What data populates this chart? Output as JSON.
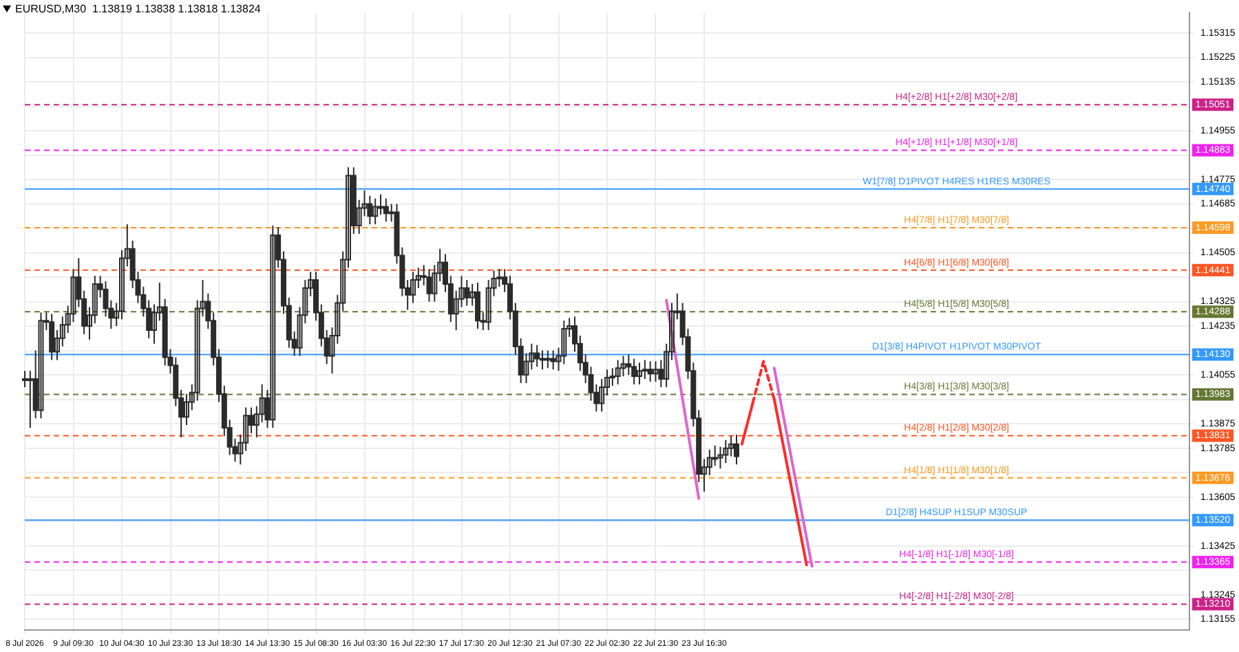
{
  "chart_data": {
    "type": "candlestick",
    "title": "EURUSD,M30  1.13819 1.13838 1.13818 1.13824",
    "color": "#2b2b2b",
    "categories": [
      "8 Jul 2026",
      null,
      null,
      null,
      null,
      null,
      null,
      null,
      null,
      "9 Jul 09:30",
      null,
      null,
      null,
      null,
      null,
      null,
      null,
      null,
      "10 Jul 04:30",
      null,
      null,
      null,
      null,
      null,
      null,
      null,
      null,
      "10 Jul 23:30",
      null,
      null,
      null,
      null,
      null,
      null,
      null,
      null,
      "13 Jul 18:30",
      null,
      null,
      null,
      null,
      null,
      null,
      null,
      null,
      "14 Jul 13:30",
      null,
      null,
      null,
      null,
      null,
      null,
      null,
      null,
      "15 Jul 08:30",
      null,
      null,
      null,
      null,
      null,
      null,
      null,
      null,
      "16 Jul 03:30",
      null,
      null,
      null,
      null,
      null,
      null,
      null,
      null,
      "16 Jul 22:30",
      null,
      null,
      null,
      null,
      null,
      null,
      null,
      null,
      "17 Jul 17:30",
      null,
      null,
      null,
      null,
      null,
      null,
      null,
      null,
      "20 Jul 12:30",
      null,
      null,
      null,
      null,
      null,
      null,
      null,
      null,
      "21 Jul 07:30",
      null,
      null,
      null,
      null,
      null,
      null,
      null,
      null,
      "22 Jul 02:30",
      null,
      null,
      null,
      null,
      null,
      null,
      null,
      null,
      "22 Jul 21:30",
      null,
      null,
      null,
      null,
      null,
      null,
      null,
      null,
      "23 Jul 16:30",
      null,
      null,
      null,
      null,
      null,
      null,
      null,
      null,
      null,
      null,
      null,
      null,
      null,
      null,
      null,
      null,
      null,
      null,
      null,
      null,
      null,
      null,
      null,
      null,
      null,
      null,
      null,
      null,
      null,
      null,
      null,
      null,
      null,
      null,
      null,
      null,
      null,
      null,
      null,
      null,
      null,
      null,
      null,
      null,
      null,
      null,
      null,
      null,
      null,
      null,
      null,
      null,
      null,
      null,
      null,
      null,
      null,
      null,
      null,
      null,
      null,
      null,
      null,
      null,
      null,
      null,
      null,
      null,
      null,
      null,
      null,
      null,
      null,
      null,
      null,
      null,
      null,
      null,
      null,
      null,
      null,
      null,
      null,
      null,
      null,
      null,
      null,
      null,
      null,
      null
    ],
    "ohlc": [
      [
        1.1404,
        1.1407,
        1.1401,
        1.1404
      ],
      [
        1.1404,
        1.1407,
        1.1386,
        1.1404
      ],
      [
        1.1404,
        1.14145,
        1.13895,
        1.13925
      ],
      [
        1.13925,
        1.14285,
        1.13895,
        1.14255
      ],
      [
        1.14255,
        1.14285,
        1.1422,
        1.1425
      ],
      [
        1.1425,
        1.1428,
        1.1411,
        1.1414
      ],
      [
        1.1414,
        1.1422,
        1.1411,
        1.1419
      ],
      [
        1.1419,
        1.1427,
        1.1416,
        1.1424
      ],
      [
        1.1424,
        1.1431,
        1.1421,
        1.1428
      ],
      [
        1.1428,
        1.14445,
        1.1425,
        1.14415
      ],
      [
        1.14415,
        1.14485,
        1.14305,
        1.14335
      ],
      [
        1.14335,
        1.14365,
        1.14205,
        1.14235
      ],
      [
        1.14235,
        1.14305,
        1.14185,
        1.14275
      ],
      [
        1.14275,
        1.1442,
        1.14245,
        1.1439
      ],
      [
        1.1439,
        1.1442,
        1.1434,
        1.1437
      ],
      [
        1.1437,
        1.144,
        1.1427,
        1.143
      ],
      [
        1.143,
        1.1433,
        1.14225,
        1.14265
      ],
      [
        1.14265,
        1.1432,
        1.14235,
        1.1429
      ],
      [
        1.1429,
        1.14515,
        1.1426,
        1.14485
      ],
      [
        1.14485,
        1.1461,
        1.14455,
        1.1452
      ],
      [
        1.1452,
        1.1455,
        1.14375,
        1.14405
      ],
      [
        1.14405,
        1.14435,
        1.1432,
        1.1435
      ],
      [
        1.1435,
        1.1438,
        1.1427,
        1.143
      ],
      [
        1.143,
        1.1433,
        1.1419,
        1.1422
      ],
      [
        1.1422,
        1.14315,
        1.1417,
        1.14285
      ],
      [
        1.14285,
        1.14395,
        1.14255,
        1.14305
      ],
      [
        1.14305,
        1.14335,
        1.1409,
        1.1412
      ],
      [
        1.1412,
        1.1415,
        1.1406,
        1.1409
      ],
      [
        1.1409,
        1.1412,
        1.1394,
        1.1397
      ],
      [
        1.1397,
        1.14,
        1.13825,
        1.139
      ],
      [
        1.139,
        1.13985,
        1.1387,
        1.13955
      ],
      [
        1.13955,
        1.1402,
        1.13925,
        1.1399
      ],
      [
        1.1399,
        1.1433,
        1.1396,
        1.143
      ],
      [
        1.143,
        1.14405,
        1.1427,
        1.14325
      ],
      [
        1.14325,
        1.14355,
        1.14225,
        1.14255
      ],
      [
        1.14255,
        1.14285,
        1.1409,
        1.1412
      ],
      [
        1.1412,
        1.1415,
        1.13955,
        1.13985
      ],
      [
        1.13985,
        1.14015,
        1.1383,
        1.1386
      ],
      [
        1.1386,
        1.1389,
        1.1376,
        1.1379
      ],
      [
        1.1379,
        1.1382,
        1.13735,
        1.13765
      ],
      [
        1.13765,
        1.13835,
        1.13725,
        1.13805
      ],
      [
        1.13805,
        1.13935,
        1.13775,
        1.13905
      ],
      [
        1.13905,
        1.13935,
        1.1384,
        1.1387
      ],
      [
        1.1387,
        1.1394,
        1.13825,
        1.1391
      ],
      [
        1.1391,
        1.1402,
        1.1388,
        1.1397
      ],
      [
        1.1397,
        1.14,
        1.1386,
        1.1389
      ],
      [
        1.1389,
        1.14605,
        1.1386,
        1.1457
      ],
      [
        1.1457,
        1.146,
        1.1445,
        1.1448
      ],
      [
        1.1448,
        1.1451,
        1.1428,
        1.1431
      ],
      [
        1.1431,
        1.1434,
        1.14155,
        1.14185
      ],
      [
        1.14185,
        1.14215,
        1.14125,
        1.14155
      ],
      [
        1.14155,
        1.14305,
        1.14125,
        1.14275
      ],
      [
        1.14275,
        1.14405,
        1.14245,
        1.14375
      ],
      [
        1.14375,
        1.14435,
        1.14345,
        1.14405
      ],
      [
        1.14405,
        1.14435,
        1.14255,
        1.14285
      ],
      [
        1.14285,
        1.14315,
        1.1416,
        1.1419
      ],
      [
        1.1419,
        1.1422,
        1.14095,
        1.14125
      ],
      [
        1.14125,
        1.1423,
        1.1406,
        1.142
      ],
      [
        1.142,
        1.1435,
        1.1417,
        1.1432
      ],
      [
        1.1432,
        1.1451,
        1.1429,
        1.1448
      ],
      [
        1.1448,
        1.1482,
        1.1445,
        1.1479
      ],
      [
        1.1479,
        1.1482,
        1.14575,
        1.14605
      ],
      [
        1.14605,
        1.147,
        1.14575,
        1.1467
      ],
      [
        1.1467,
        1.14735,
        1.1464,
        1.14685
      ],
      [
        1.14685,
        1.14715,
        1.1461,
        1.1464
      ],
      [
        1.1464,
        1.14705,
        1.1461,
        1.14675
      ],
      [
        1.14675,
        1.1472,
        1.14645,
        1.14675
      ],
      [
        1.14675,
        1.14705,
        1.1462,
        1.1465
      ],
      [
        1.1465,
        1.14685,
        1.1462,
        1.14655
      ],
      [
        1.14655,
        1.14685,
        1.14465,
        1.14495
      ],
      [
        1.14495,
        1.14525,
        1.14345,
        1.14375
      ],
      [
        1.14375,
        1.14405,
        1.14295,
        1.1435
      ],
      [
        1.1435,
        1.14435,
        1.1432,
        1.14405
      ],
      [
        1.14405,
        1.1445,
        1.14375,
        1.1442
      ],
      [
        1.1442,
        1.1446,
        1.14385,
        1.14415
      ],
      [
        1.14415,
        1.14445,
        1.14325,
        1.14355
      ],
      [
        1.14355,
        1.1446,
        1.14325,
        1.1443
      ],
      [
        1.1443,
        1.1452,
        1.144,
        1.1447
      ],
      [
        1.1447,
        1.145,
        1.1436,
        1.1439
      ],
      [
        1.1439,
        1.1442,
        1.1425,
        1.1428
      ],
      [
        1.1428,
        1.14365,
        1.1422,
        1.14335
      ],
      [
        1.14335,
        1.1442,
        1.14305,
        1.14375
      ],
      [
        1.14375,
        1.14405,
        1.1431,
        1.1434
      ],
      [
        1.1434,
        1.1439,
        1.1431,
        1.1436
      ],
      [
        1.1436,
        1.14395,
        1.14225,
        1.14255
      ],
      [
        1.14255,
        1.14285,
        1.1422,
        1.1425
      ],
      [
        1.1425,
        1.14405,
        1.1422,
        1.14375
      ],
      [
        1.14375,
        1.1444,
        1.14345,
        1.1441
      ],
      [
        1.1441,
        1.14445,
        1.1438,
        1.14415
      ],
      [
        1.14415,
        1.14445,
        1.1436,
        1.1439
      ],
      [
        1.1439,
        1.1442,
        1.1426,
        1.1429
      ],
      [
        1.1429,
        1.1432,
        1.1413,
        1.1416
      ],
      [
        1.1416,
        1.1419,
        1.14025,
        1.14055
      ],
      [
        1.14055,
        1.14135,
        1.14025,
        1.14105
      ],
      [
        1.14105,
        1.1417,
        1.14075,
        1.14135
      ],
      [
        1.14135,
        1.14165,
        1.14085,
        1.14115
      ],
      [
        1.14115,
        1.14145,
        1.14075,
        1.1411
      ],
      [
        1.1411,
        1.14145,
        1.1408,
        1.14115
      ],
      [
        1.14115,
        1.14145,
        1.14075,
        1.14105
      ],
      [
        1.14105,
        1.14155,
        1.1407,
        1.14125
      ],
      [
        1.14125,
        1.14255,
        1.14095,
        1.14225
      ],
      [
        1.14225,
        1.14265,
        1.14195,
        1.14235
      ],
      [
        1.14235,
        1.1427,
        1.1414,
        1.1417
      ],
      [
        1.1417,
        1.142,
        1.1407,
        1.141
      ],
      [
        1.141,
        1.1413,
        1.14025,
        1.14055
      ],
      [
        1.14055,
        1.14085,
        1.1396,
        1.1399
      ],
      [
        1.1399,
        1.1402,
        1.1392,
        1.1395
      ],
      [
        1.1395,
        1.1404,
        1.1392,
        1.1401
      ],
      [
        1.1401,
        1.14075,
        1.1398,
        1.14045
      ],
      [
        1.14045,
        1.1408,
        1.14015,
        1.1405
      ],
      [
        1.1405,
        1.1411,
        1.1402,
        1.1408
      ],
      [
        1.1408,
        1.14125,
        1.1405,
        1.14095
      ],
      [
        1.14095,
        1.1413,
        1.14055,
        1.14085
      ],
      [
        1.14085,
        1.14115,
        1.1402,
        1.1405
      ],
      [
        1.1405,
        1.141,
        1.1402,
        1.1407
      ],
      [
        1.1407,
        1.1411,
        1.1404,
        1.14075
      ],
      [
        1.14075,
        1.14105,
        1.1403,
        1.1406
      ],
      [
        1.1406,
        1.14105,
        1.1403,
        1.14075
      ],
      [
        1.14075,
        1.1411,
        1.1401,
        1.1404
      ],
      [
        1.1404,
        1.1417,
        1.1401,
        1.1414
      ],
      [
        1.1414,
        1.1432,
        1.1411,
        1.1429
      ],
      [
        1.1429,
        1.14355,
        1.1426,
        1.1429
      ],
      [
        1.1429,
        1.1432,
        1.14165,
        1.14195
      ],
      [
        1.14195,
        1.14225,
        1.1404,
        1.1407
      ],
      [
        1.1407,
        1.141,
        1.13865,
        1.13895
      ],
      [
        1.13895,
        1.13925,
        1.1366,
        1.1369
      ],
      [
        1.1369,
        1.13745,
        1.13625,
        1.13715
      ],
      [
        1.13715,
        1.1378,
        1.13685,
        1.1375
      ],
      [
        1.1375,
        1.13795,
        1.1372,
        1.1375
      ],
      [
        1.1375,
        1.1379,
        1.1371,
        1.1376
      ],
      [
        1.1376,
        1.13815,
        1.1373,
        1.13785
      ],
      [
        1.13785,
        1.1383,
        1.13755,
        1.138
      ],
      [
        1.138,
        1.13835,
        1.13725,
        1.13755
      ],
      null,
      null,
      null,
      null,
      null,
      null,
      null,
      null,
      null,
      null,
      null,
      null,
      null,
      null,
      null,
      null,
      null,
      null,
      null,
      null,
      null,
      null,
      null,
      null,
      null,
      null,
      null,
      null,
      null,
      null,
      null,
      null,
      null,
      null,
      null,
      null,
      null,
      null,
      null,
      null,
      null,
      null,
      null,
      null,
      null,
      null,
      null,
      null,
      null,
      null,
      null,
      null,
      null,
      null,
      null,
      null,
      null,
      null,
      null,
      null,
      null,
      null,
      null,
      null,
      null,
      null,
      null,
      null,
      null,
      null,
      null,
      null,
      null,
      null,
      null,
      null,
      null,
      null,
      null,
      null,
      null,
      null,
      null,
      null
    ],
    "series": [
      {
        "type": "line",
        "color": "#dd66cc",
        "line_style": "solid",
        "values": [
          null,
          null,
          null,
          null,
          null,
          null,
          null,
          null,
          null,
          null,
          null,
          null,
          null,
          null,
          null,
          null,
          null,
          null,
          null,
          null,
          null,
          null,
          null,
          null,
          null,
          null,
          null,
          null,
          null,
          null,
          null,
          null,
          null,
          null,
          null,
          null,
          null,
          null,
          null,
          null,
          null,
          null,
          null,
          null,
          null,
          null,
          null,
          null,
          null,
          null,
          null,
          null,
          null,
          null,
          null,
          null,
          null,
          null,
          null,
          null,
          null,
          null,
          null,
          null,
          null,
          null,
          null,
          null,
          null,
          null,
          null,
          null,
          null,
          null,
          null,
          null,
          null,
          null,
          null,
          null,
          null,
          null,
          null,
          null,
          null,
          null,
          null,
          null,
          null,
          null,
          null,
          null,
          null,
          null,
          null,
          null,
          null,
          null,
          null,
          null,
          null,
          null,
          null,
          null,
          null,
          null,
          null,
          null,
          null,
          null,
          null,
          null,
          null,
          null,
          null,
          null,
          null,
          null,
          null,
          1.1433,
          null,
          null,
          null,
          null,
          null,
          1.136,
          null,
          null,
          null,
          null,
          null,
          null,
          null,
          null,
          null,
          null,
          null,
          null,
          null,
          null,
          null,
          null,
          null,
          null,
          null,
          null,
          null,
          null,
          null,
          null,
          null,
          null,
          null,
          null,
          null,
          null,
          null,
          null,
          null,
          null,
          null,
          null,
          null,
          null,
          null,
          null,
          null,
          null,
          null,
          null,
          null,
          null,
          null,
          null,
          null,
          null,
          null,
          null,
          null,
          null,
          null,
          null,
          null,
          null,
          null,
          null,
          null,
          null,
          null,
          null,
          null,
          null,
          null,
          null,
          null,
          null,
          null,
          null,
          null,
          null,
          null,
          null,
          null,
          null,
          null,
          null,
          null,
          null,
          null,
          null,
          null,
          null,
          null,
          null,
          null,
          null,
          null
        ]
      },
      {
        "type": "line",
        "color": "#dd66cc",
        "line_style": "solid",
        "values": [
          null,
          null,
          null,
          null,
          null,
          null,
          null,
          null,
          null,
          null,
          null,
          null,
          null,
          null,
          null,
          null,
          null,
          null,
          null,
          null,
          null,
          null,
          null,
          null,
          null,
          null,
          null,
          null,
          null,
          null,
          null,
          null,
          null,
          null,
          null,
          null,
          null,
          null,
          null,
          null,
          null,
          null,
          null,
          null,
          null,
          null,
          null,
          null,
          null,
          null,
          null,
          null,
          null,
          null,
          null,
          null,
          null,
          null,
          null,
          null,
          null,
          null,
          null,
          null,
          null,
          null,
          null,
          null,
          null,
          null,
          null,
          null,
          null,
          null,
          null,
          null,
          null,
          null,
          null,
          null,
          null,
          null,
          null,
          null,
          null,
          null,
          null,
          null,
          null,
          null,
          null,
          null,
          null,
          null,
          null,
          null,
          null,
          null,
          null,
          null,
          null,
          null,
          null,
          null,
          null,
          null,
          null,
          null,
          null,
          null,
          null,
          null,
          null,
          null,
          null,
          null,
          null,
          null,
          null,
          null,
          null,
          null,
          null,
          null,
          null,
          null,
          null,
          null,
          null,
          null,
          null,
          null,
          null,
          null,
          null,
          null,
          null,
          null,
          null,
          1.1408,
          null,
          null,
          null,
          null,
          null,
          null,
          1.1335,
          null,
          null,
          null,
          null,
          null,
          null,
          null,
          null,
          null,
          null,
          null,
          null,
          null,
          null,
          null,
          null,
          null,
          null,
          null,
          null,
          null,
          null,
          null,
          null,
          null,
          null,
          null,
          null,
          null,
          null,
          null,
          null,
          null,
          null,
          null,
          null,
          null,
          null,
          null,
          null,
          null,
          null,
          null,
          null,
          null,
          null,
          null,
          null,
          null,
          null,
          null,
          null,
          null,
          null,
          null,
          null,
          null,
          null,
          null,
          null,
          null,
          null,
          null,
          null,
          null,
          null,
          null,
          null,
          null,
          null
        ]
      },
      {
        "type": "line",
        "color": "#ff2a2a",
        "line_style": "solid",
        "values": [
          null,
          null,
          null,
          null,
          null,
          null,
          null,
          null,
          null,
          null,
          null,
          null,
          null,
          null,
          null,
          null,
          null,
          null,
          null,
          null,
          null,
          null,
          null,
          null,
          null,
          null,
          null,
          null,
          null,
          null,
          null,
          null,
          null,
          null,
          null,
          null,
          null,
          null,
          null,
          null,
          null,
          null,
          null,
          null,
          null,
          null,
          null,
          null,
          null,
          null,
          null,
          null,
          null,
          null,
          null,
          null,
          null,
          null,
          null,
          null,
          null,
          null,
          null,
          null,
          null,
          null,
          null,
          null,
          null,
          null,
          null,
          null,
          null,
          null,
          null,
          null,
          null,
          null,
          null,
          null,
          null,
          null,
          null,
          null,
          null,
          null,
          null,
          null,
          null,
          null,
          null,
          null,
          null,
          null,
          null,
          null,
          null,
          null,
          null,
          null,
          null,
          null,
          null,
          null,
          null,
          null,
          null,
          null,
          null,
          null,
          null,
          null,
          null,
          null,
          null,
          null,
          null,
          null,
          null,
          null,
          null,
          null,
          null,
          null,
          null,
          null,
          null,
          null,
          null,
          null,
          null,
          null,
          null,
          1.138,
          null,
          1.1395,
          null,
          null,
          null,
          null,
          null,
          null,
          null,
          null,
          null,
          null,
          null,
          null,
          null,
          null,
          null,
          null,
          null,
          null,
          null,
          null,
          null,
          null,
          null,
          null,
          null,
          null,
          null,
          null,
          null,
          null,
          null,
          null,
          null,
          null,
          null,
          null,
          null,
          null,
          null,
          null,
          null,
          null,
          null,
          null,
          null,
          null,
          null,
          null,
          null,
          null,
          null,
          null,
          null,
          null,
          null,
          null,
          null,
          null,
          null,
          null,
          null,
          null,
          null,
          null,
          null,
          null,
          null,
          null,
          null,
          null,
          null,
          null,
          null,
          null,
          null,
          null,
          null,
          null,
          null,
          null,
          null
        ]
      },
      {
        "type": "line",
        "color": "#ff2a2a",
        "line_style": "dashed",
        "values": [
          null,
          null,
          null,
          null,
          null,
          null,
          null,
          null,
          null,
          null,
          null,
          null,
          null,
          null,
          null,
          null,
          null,
          null,
          null,
          null,
          null,
          null,
          null,
          null,
          null,
          null,
          null,
          null,
          null,
          null,
          null,
          null,
          null,
          null,
          null,
          null,
          null,
          null,
          null,
          null,
          null,
          null,
          null,
          null,
          null,
          null,
          null,
          null,
          null,
          null,
          null,
          null,
          null,
          null,
          null,
          null,
          null,
          null,
          null,
          null,
          null,
          null,
          null,
          null,
          null,
          null,
          null,
          null,
          null,
          null,
          null,
          null,
          null,
          null,
          null,
          null,
          null,
          null,
          null,
          null,
          null,
          null,
          null,
          null,
          null,
          null,
          null,
          null,
          null,
          null,
          null,
          null,
          null,
          null,
          null,
          null,
          null,
          null,
          null,
          null,
          null,
          null,
          null,
          null,
          null,
          null,
          null,
          null,
          null,
          null,
          null,
          null,
          null,
          null,
          null,
          null,
          null,
          null,
          null,
          null,
          null,
          null,
          null,
          null,
          null,
          null,
          null,
          null,
          null,
          null,
          null,
          null,
          null,
          null,
          null,
          1.1395,
          null,
          1.14105,
          null,
          1.13965,
          null,
          null,
          null,
          null,
          null,
          null,
          null,
          null,
          null,
          null,
          null,
          null,
          null,
          null,
          null,
          null,
          null,
          null,
          null,
          null,
          null,
          null,
          null,
          null,
          null,
          null,
          null,
          null,
          null,
          null,
          null,
          null,
          null,
          null,
          null,
          null,
          null,
          null,
          null,
          null,
          null,
          null,
          null,
          null,
          null,
          null,
          null,
          null,
          null,
          null,
          null,
          null,
          null,
          null,
          null,
          null,
          null,
          null,
          null,
          null,
          null,
          null,
          null,
          null,
          null,
          null,
          null,
          null,
          null,
          null,
          null,
          null,
          null,
          null,
          null,
          null,
          null
        ]
      },
      {
        "type": "line",
        "color": "#ff2a2a",
        "line_style": "solid",
        "values": [
          null,
          null,
          null,
          null,
          null,
          null,
          null,
          null,
          null,
          null,
          null,
          null,
          null,
          null,
          null,
          null,
          null,
          null,
          null,
          null,
          null,
          null,
          null,
          null,
          null,
          null,
          null,
          null,
          null,
          null,
          null,
          null,
          null,
          null,
          null,
          null,
          null,
          null,
          null,
          null,
          null,
          null,
          null,
          null,
          null,
          null,
          null,
          null,
          null,
          null,
          null,
          null,
          null,
          null,
          null,
          null,
          null,
          null,
          null,
          null,
          null,
          null,
          null,
          null,
          null,
          null,
          null,
          null,
          null,
          null,
          null,
          null,
          null,
          null,
          null,
          null,
          null,
          null,
          null,
          null,
          null,
          null,
          null,
          null,
          null,
          null,
          null,
          null,
          null,
          null,
          null,
          null,
          null,
          null,
          null,
          null,
          null,
          null,
          null,
          null,
          null,
          null,
          null,
          null,
          null,
          null,
          null,
          null,
          null,
          null,
          null,
          null,
          null,
          null,
          null,
          null,
          null,
          null,
          null,
          null,
          null,
          null,
          null,
          null,
          null,
          null,
          null,
          null,
          null,
          null,
          null,
          null,
          null,
          null,
          null,
          null,
          null,
          null,
          null,
          1.13965,
          null,
          null,
          null,
          null,
          null,
          1.13355,
          null,
          null,
          null,
          null,
          null,
          null,
          null,
          null,
          null,
          null,
          null,
          null,
          null,
          null,
          null,
          null,
          null,
          null,
          null,
          null,
          null,
          null,
          null,
          null,
          null,
          null,
          null,
          null,
          null,
          null,
          null,
          null,
          null,
          null,
          null,
          null,
          null,
          null,
          null,
          null,
          null,
          null,
          null,
          null,
          null,
          null,
          null,
          null,
          null,
          null,
          null,
          null,
          null,
          null,
          null,
          null,
          null,
          null,
          null,
          null,
          null,
          null,
          null,
          null,
          null,
          null,
          null,
          null,
          null,
          null,
          null
        ]
      }
    ],
    "ref_lines": [
      {
        "axis": "y",
        "value": 1.15051,
        "label": "1.15051",
        "color": "#cc2288",
        "line_style": "dashed"
      },
      {
        "axis": "y",
        "value": 1.14883,
        "label": "1.14883",
        "color": "#ee22ee",
        "line_style": "dashed"
      },
      {
        "axis": "y",
        "value": 1.1474,
        "label": "1.14740",
        "color": "#3399ff",
        "line_style": "solid"
      },
      {
        "axis": "y",
        "value": 1.14598,
        "label": "1.14598",
        "color": "#ff9922",
        "line_style": "dashed"
      },
      {
        "axis": "y",
        "value": 1.14441,
        "label": "1.14441",
        "color": "#ff5522",
        "line_style": "dashed"
      },
      {
        "axis": "y",
        "value": 1.14288,
        "label": "1.14288",
        "color": "#667733",
        "line_style": "dashed"
      },
      {
        "axis": "y",
        "value": 1.1413,
        "label": "1.14130",
        "color": "#3399ff",
        "line_style": "solid"
      },
      {
        "axis": "y",
        "value": 1.13983,
        "label": "1.13983",
        "color": "#667733",
        "line_style": "dashed"
      },
      {
        "axis": "y",
        "value": 1.13831,
        "label": "1.13831",
        "color": "#ff5522",
        "line_style": "dashed"
      },
      {
        "axis": "y",
        "value": 1.13676,
        "label": "1.13676",
        "color": "#ff9922",
        "line_style": "dashed"
      },
      {
        "axis": "y",
        "value": 1.1352,
        "label": "1.13520",
        "color": "#3399ff",
        "line_style": "solid"
      },
      {
        "axis": "y",
        "value": 1.13365,
        "label": "1.13365",
        "color": "#ee22ee",
        "line_style": "dashed"
      },
      {
        "axis": "y",
        "value": 1.1321,
        "label": "1.13210",
        "color": "#cc2288",
        "line_style": "dashed"
      }
    ],
    "annotations": [
      {
        "text": "H4[+2/8] H1[+2/8] M30[+2/8]",
        "y": 1.15051
      },
      {
        "text": "H4[+1/8] H1[+1/8] M30[+1/8]",
        "y": 1.14883
      },
      {
        "text": "W1[7/8] D1PIVOT H4RES H1RES M30RES",
        "y": 1.1474
      },
      {
        "text": "H4[7/8] H1[7/8] M30[7/8]",
        "y": 1.14598
      },
      {
        "text": "H4[6/8] H1[6/8] M30[6/8]",
        "y": 1.14441
      },
      {
        "text": "H4[5/8] H1[5/8] M30[5/8]",
        "y": 1.14288
      },
      {
        "text": "D1[3/8] H4PIVOT H1PIVOT M30PIVOT",
        "y": 1.1413
      },
      {
        "text": "H4[3/8] H1[3/8] M30[3/8]",
        "y": 1.13983
      },
      {
        "text": "H4[2/8] H1[2/8] M30[2/8]",
        "y": 1.13831
      },
      {
        "text": "H4[1/8] H1[1/8] M30[1/8]",
        "y": 1.13676
      },
      {
        "text": "D1[2/8] H4SUP H1SUP M30SUP",
        "y": 1.1352
      },
      {
        "text": "H4[-1/8] H1[-1/8] M30[-1/8]",
        "y": 1.13365
      },
      {
        "text": "H4[-2/8] H1[-2/8] M30[-2/8]",
        "y": 1.1321
      }
    ],
    "ylim": [
      1.13115,
      1.1539
    ],
    "yticks": [
      1.13155,
      1.13245,
      {
        "value": 1.13335,
        "label": null
      },
      1.13425,
      {
        "value": 1.13515,
        "label": null
      },
      1.13605,
      {
        "value": 1.13695,
        "label": null
      },
      1.13785,
      1.13875,
      {
        "value": 1.13965,
        "label": null
      },
      1.14055,
      {
        "value": 1.14145,
        "label": null
      },
      1.14235,
      1.14325,
      {
        "value": 1.14415,
        "label": null
      },
      1.14505,
      {
        "value": 1.14595,
        "label": null
      },
      1.14685,
      1.14775,
      {
        "value": 1.14865,
        "label": null
      },
      1.14955,
      {
        "value": 1.15045,
        "label": null
      },
      1.15135,
      1.15225,
      1.15315
    ],
    "grid": true,
    "legend": false
  }
}
